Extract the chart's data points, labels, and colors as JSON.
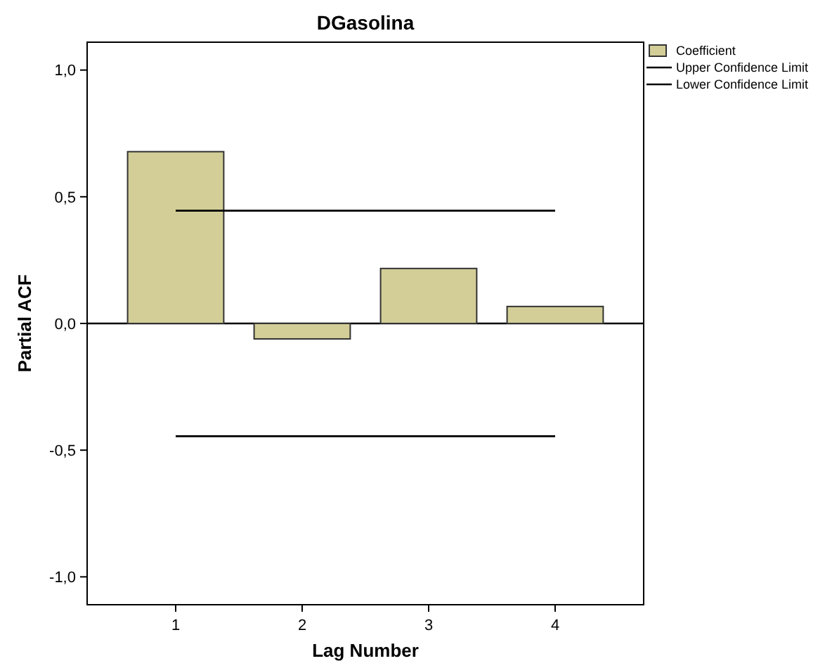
{
  "chart_data": {
    "type": "bar",
    "title": "DGasolina",
    "xlabel": "Lag Number",
    "ylabel": "Partial ACF",
    "categories": [
      "1",
      "2",
      "3",
      "4"
    ],
    "series": [
      {
        "name": "Coefficient",
        "color": "#d3ce97",
        "values": [
          0.678,
          -0.061,
          0.217,
          0.067
        ]
      },
      {
        "name": "Upper Confidence Limit",
        "type": "line",
        "color": "#000000",
        "values": [
          0.445,
          0.445,
          0.445,
          0.445
        ]
      },
      {
        "name": "Lower Confidence Limit",
        "type": "line",
        "color": "#000000",
        "values": [
          -0.445,
          -0.445,
          -0.445,
          -0.445
        ]
      }
    ],
    "ylim": [
      -1.11,
      1.11
    ],
    "yticks": [
      {
        "value": -1,
        "label": "-1,0"
      },
      {
        "value": -0.5,
        "label": "-0,5"
      },
      {
        "value": 0,
        "label": "0,0"
      },
      {
        "value": 0.5,
        "label": "0,5"
      },
      {
        "value": 1,
        "label": "1,0"
      }
    ],
    "ref_lines": [
      {
        "axis": "y",
        "value": 0,
        "color": "#000000"
      }
    ],
    "grid": false,
    "legend": "top right",
    "marker": "none",
    "line_style": "solid"
  }
}
